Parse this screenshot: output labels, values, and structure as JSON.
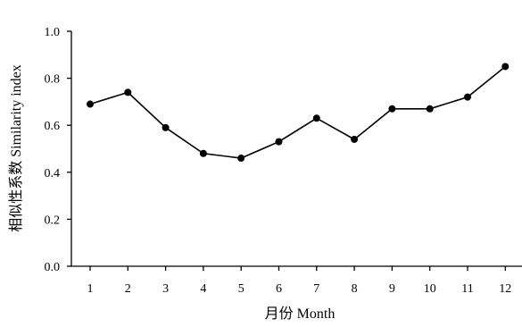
{
  "chart_data": {
    "type": "line",
    "title": "",
    "xlabel": "月份 Month",
    "ylabel": "相似性系数 Similarity index",
    "categories": [
      "1",
      "2",
      "3",
      "4",
      "5",
      "6",
      "7",
      "8",
      "9",
      "10",
      "11",
      "12"
    ],
    "series": [
      {
        "values": [
          0.69,
          0.74,
          0.59,
          0.48,
          0.46,
          0.53,
          0.63,
          0.54,
          0.67,
          0.67,
          0.72,
          0.85
        ]
      }
    ],
    "yticks": [
      "0.0",
      "0.2",
      "0.4",
      "0.6",
      "0.8",
      "1.0"
    ],
    "ylim": [
      0,
      1.0
    ],
    "grid": false,
    "legend": "none",
    "colors": {
      "line": "#000000",
      "marker": "#000000",
      "axis": "#000000"
    }
  }
}
